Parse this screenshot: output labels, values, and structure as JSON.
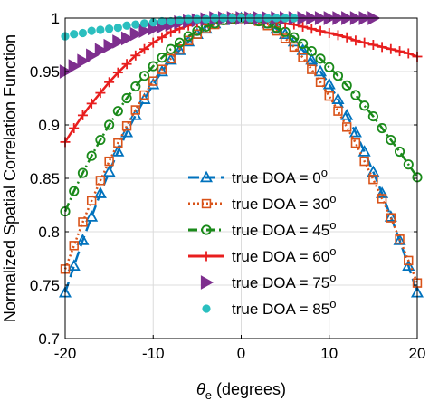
{
  "chart_data": {
    "type": "line",
    "ylabel": "Normalized Spatial Correlation Function",
    "xlabel_symbol": "θ",
    "xlabel_sub": "e",
    "xlabel_rest": " (degrees)",
    "xlim": [
      -20,
      20
    ],
    "ylim": [
      0.7,
      1.0
    ],
    "x_ticks": [
      -20,
      -10,
      0,
      10,
      20
    ],
    "x_tick_labels": [
      "-20",
      "-10",
      "0",
      "10",
      "20"
    ],
    "y_ticks": [
      0.7,
      0.75,
      0.8,
      0.85,
      0.9,
      0.95,
      1.0
    ],
    "y_tick_labels": [
      "0.7",
      "0.75",
      "0.8",
      "0.85",
      "0.9",
      "0.95",
      "1"
    ],
    "grid": true,
    "legend_position": "lower-center",
    "x": [
      -20,
      -19,
      -18,
      -17,
      -16,
      -15,
      -14,
      -13,
      -12,
      -11,
      -10,
      -9,
      -8,
      -7,
      -6,
      -5,
      -4,
      -3,
      -2,
      -1,
      0,
      1,
      2,
      3,
      4,
      5,
      6,
      7,
      8,
      9,
      10,
      11,
      12,
      13,
      14,
      15,
      16,
      17,
      18,
      19,
      20
    ],
    "series": [
      {
        "name": "true DOA = 0",
        "superscript": "o",
        "color": "#0072BD",
        "marker": "triangle-up",
        "line_style": "dash",
        "values": [
          0.743,
          0.768,
          0.792,
          0.814,
          0.836,
          0.856,
          0.875,
          0.893,
          0.909,
          0.924,
          0.938,
          0.95,
          0.961,
          0.97,
          0.978,
          0.985,
          0.99,
          0.995,
          0.998,
          0.999,
          1.0,
          0.999,
          0.998,
          0.995,
          0.99,
          0.985,
          0.978,
          0.97,
          0.961,
          0.95,
          0.938,
          0.924,
          0.909,
          0.893,
          0.875,
          0.856,
          0.836,
          0.814,
          0.792,
          0.768,
          0.743
        ]
      },
      {
        "name": "true DOA = 30",
        "superscript": "o",
        "color": "#D95319",
        "marker": "square",
        "line_style": "dot",
        "values": [
          0.765,
          0.787,
          0.809,
          0.829,
          0.848,
          0.866,
          0.883,
          0.899,
          0.914,
          0.928,
          0.941,
          0.952,
          0.962,
          0.971,
          0.979,
          0.985,
          0.99,
          0.994,
          0.998,
          0.999,
          1.0,
          0.999,
          0.997,
          0.993,
          0.988,
          0.981,
          0.973,
          0.963,
          0.952,
          0.94,
          0.927,
          0.913,
          0.898,
          0.883,
          0.866,
          0.849,
          0.831,
          0.813,
          0.793,
          0.773,
          0.752
        ]
      },
      {
        "name": "true DOA = 45",
        "superscript": "o",
        "color": "#1A8A1A",
        "marker": "circle-open",
        "line_style": "dashdot",
        "values": [
          0.819,
          0.838,
          0.855,
          0.871,
          0.886,
          0.9,
          0.913,
          0.925,
          0.936,
          0.946,
          0.955,
          0.963,
          0.971,
          0.977,
          0.983,
          0.988,
          0.992,
          0.995,
          0.998,
          0.999,
          1.0,
          0.999,
          0.997,
          0.995,
          0.991,
          0.987,
          0.982,
          0.976,
          0.969,
          0.962,
          0.954,
          0.946,
          0.937,
          0.928,
          0.918,
          0.908,
          0.897,
          0.886,
          0.875,
          0.863,
          0.851
        ]
      },
      {
        "name": "true DOA = 60",
        "superscript": "o",
        "color": "#E81E1E",
        "marker": "plus",
        "line_style": "solid",
        "values": [
          0.884,
          0.897,
          0.909,
          0.92,
          0.93,
          0.94,
          0.949,
          0.957,
          0.965,
          0.971,
          0.977,
          0.982,
          0.987,
          0.99,
          0.993,
          0.996,
          0.998,
          0.999,
          1.0,
          1.0,
          1.0,
          1.0,
          0.999,
          0.998,
          0.997,
          0.995,
          0.994,
          0.992,
          0.99,
          0.988,
          0.986,
          0.984,
          0.982,
          0.979,
          0.977,
          0.975,
          0.973,
          0.971,
          0.969,
          0.967,
          0.964
        ]
      },
      {
        "name": "true DOA = 75",
        "superscript": "o",
        "color": "#7E2F8E",
        "marker": "triangle-right",
        "line_style": "none",
        "values": [
          0.95,
          0.955,
          0.96,
          0.965,
          0.97,
          0.974,
          0.978,
          0.981,
          0.985,
          0.988,
          0.99,
          0.992,
          0.994,
          0.996,
          0.997,
          0.998,
          0.999,
          1.0,
          1.0,
          1.0,
          1.0,
          1.0,
          1.0,
          1.0,
          1.0,
          1.0,
          1.0,
          1.0,
          1.0,
          1.0,
          1.0,
          1.0,
          1.0,
          1.0,
          1.0,
          1.0,
          null,
          null,
          null,
          null,
          null
        ]
      },
      {
        "name": "true DOA = 85",
        "superscript": "o",
        "color": "#2BBFBF",
        "marker": "circle-filled",
        "line_style": "none",
        "values": [
          0.983,
          0.985,
          0.986,
          0.988,
          0.989,
          0.99,
          0.991,
          0.993,
          0.994,
          0.995,
          0.996,
          0.997,
          0.997,
          0.998,
          0.999,
          0.999,
          0.999,
          1.0,
          1.0,
          1.0,
          1.0,
          1.0,
          1.0,
          1.0,
          1.0,
          1.0,
          1.0,
          null,
          null,
          null,
          null,
          null,
          null,
          null,
          null,
          null,
          null,
          null,
          null,
          null,
          null
        ]
      }
    ]
  }
}
